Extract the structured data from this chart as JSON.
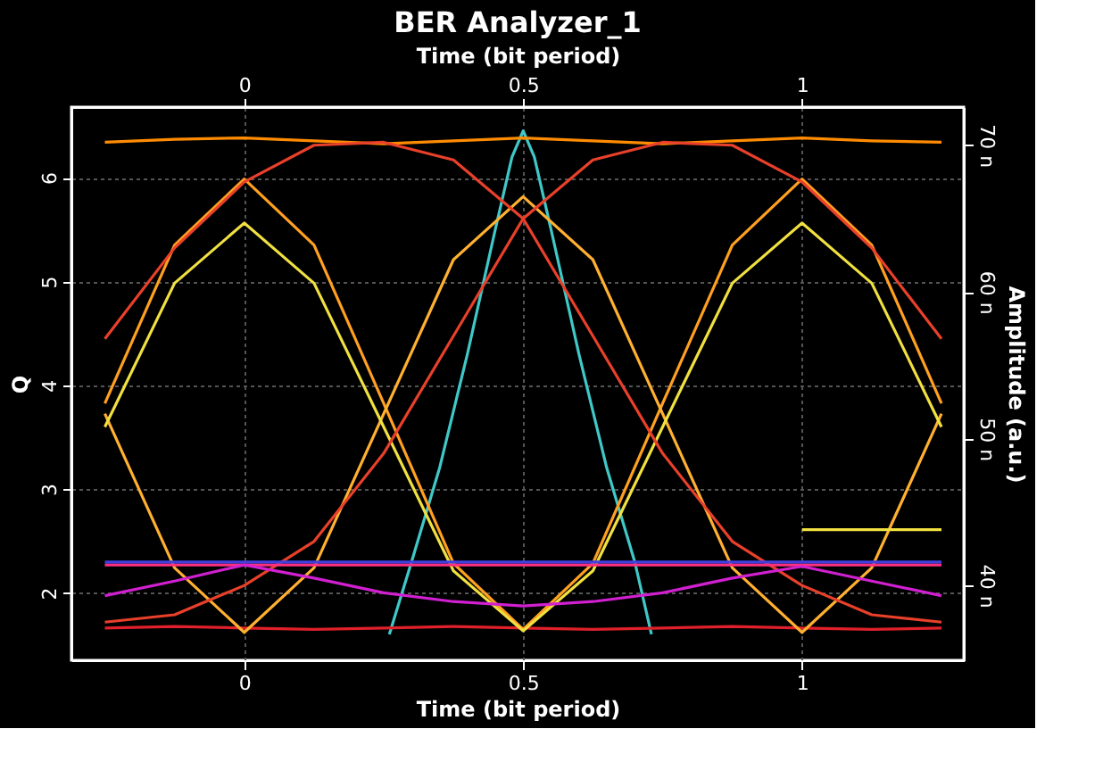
{
  "chart_data": {
    "type": "line",
    "title": "BER Analyzer_1",
    "xlabel": "Time (bit period)",
    "x2label": "Time (bit period)",
    "ylabel": "Q",
    "y2label": "Amplitude (a.u.)",
    "xlim": [
      -0.31,
      1.29
    ],
    "xticks": [
      0,
      0.5,
      1
    ],
    "x2lim": [
      -0.31,
      1.29
    ],
    "x2ticks": [
      0,
      0.5,
      1
    ],
    "ylim": [
      1.35,
      6.68
    ],
    "yticks": [
      2,
      3,
      4,
      5,
      6
    ],
    "y2lim": [
      34.9,
      72.6
    ],
    "y2ticks": [
      {
        "value": 40,
        "label": "40 n"
      },
      {
        "value": 50,
        "label": "50 n"
      },
      {
        "value": 60,
        "label": "60 n"
      },
      {
        "value": 70,
        "label": "70 n"
      }
    ],
    "grid": true,
    "x": [
      -0.25,
      -0.125,
      0,
      0.125,
      0.25,
      0.375,
      0.5,
      0.625,
      0.75,
      0.875,
      1,
      1.125,
      1.25
    ],
    "series": [
      {
        "color": "#ff8c00",
        "axis": "y2",
        "values": [
          70.2,
          70.4,
          70.5,
          70.3,
          70.1,
          70.3,
          70.5,
          70.3,
          70.1,
          70.3,
          70.5,
          70.3,
          70.2
        ]
      },
      {
        "color": "#e0202a",
        "axis": "y2",
        "values": [
          37.1,
          37.2,
          37.1,
          37.0,
          37.1,
          37.2,
          37.1,
          37.0,
          37.1,
          37.2,
          37.1,
          37.0,
          37.1
        ]
      },
      {
        "color": "#ffa020",
        "axis": "y2",
        "values": [
          52.4,
          63.2,
          67.7,
          63.2,
          52.4,
          41.5,
          37.0,
          41.5,
          52.4,
          63.2,
          67.7,
          63.2,
          52.4
        ]
      },
      {
        "color": "#ffb030",
        "axis": "y2",
        "values": [
          51.7,
          41.2,
          36.8,
          41.2,
          51.7,
          62.2,
          66.5,
          62.2,
          51.7,
          41.2,
          36.8,
          41.2,
          51.7
        ]
      },
      {
        "color": "#f0e040",
        "axis": "y2",
        "values": [
          50.8,
          60.6,
          64.7,
          60.6,
          50.8,
          41.0,
          36.9,
          41.0,
          50.8,
          60.6,
          64.7,
          60.6,
          50.8
        ]
      },
      {
        "color": "#e8402a",
        "axis": "y2",
        "values": [
          56.8,
          63.0,
          67.5,
          70.0,
          70.2,
          69.0,
          65.0,
          57.0,
          49.0,
          43.0,
          40.0,
          38.0,
          37.5
        ]
      },
      {
        "color": "#e8402a",
        "axis": "y2",
        "values": [
          37.5,
          38.0,
          40.0,
          43.0,
          49.0,
          57.0,
          65.0,
          69.0,
          70.2,
          70.0,
          67.5,
          63.0,
          56.8
        ]
      },
      {
        "color": "#ff3080",
        "axis": "y2",
        "values": [
          41.4,
          41.4,
          41.4,
          41.4,
          41.4,
          41.4,
          41.4,
          41.4,
          41.4,
          41.4,
          41.4,
          41.4,
          41.4
        ]
      },
      {
        "color": "#4040e0",
        "axis": "y2",
        "values": [
          41.6,
          41.6,
          41.6,
          41.6,
          41.6,
          41.6,
          41.6,
          41.6,
          41.6,
          41.6,
          41.6,
          41.6,
          41.6
        ]
      },
      {
        "color": "#d020d0",
        "axis": "y2",
        "values": [
          39.3,
          40.3,
          41.4,
          40.5,
          39.5,
          38.9,
          38.6,
          38.9,
          39.5,
          40.5,
          41.3,
          40.3,
          39.3
        ]
      },
      {
        "color": "#f0e040",
        "axis": "y2",
        "x": [
          1.0,
          1.25
        ],
        "values": [
          43.8,
          43.8
        ]
      },
      {
        "color": "#40c8c8",
        "x": [
          0.26,
          0.3,
          0.35,
          0.4,
          0.45,
          0.48,
          0.5,
          0.52,
          0.55,
          0.6,
          0.65,
          0.7,
          0.73
        ],
        "values": [
          1.6,
          2.3,
          3.2,
          4.3,
          5.5,
          6.2,
          6.45,
          6.2,
          5.5,
          4.3,
          3.2,
          2.3,
          1.6
        ]
      }
    ]
  }
}
